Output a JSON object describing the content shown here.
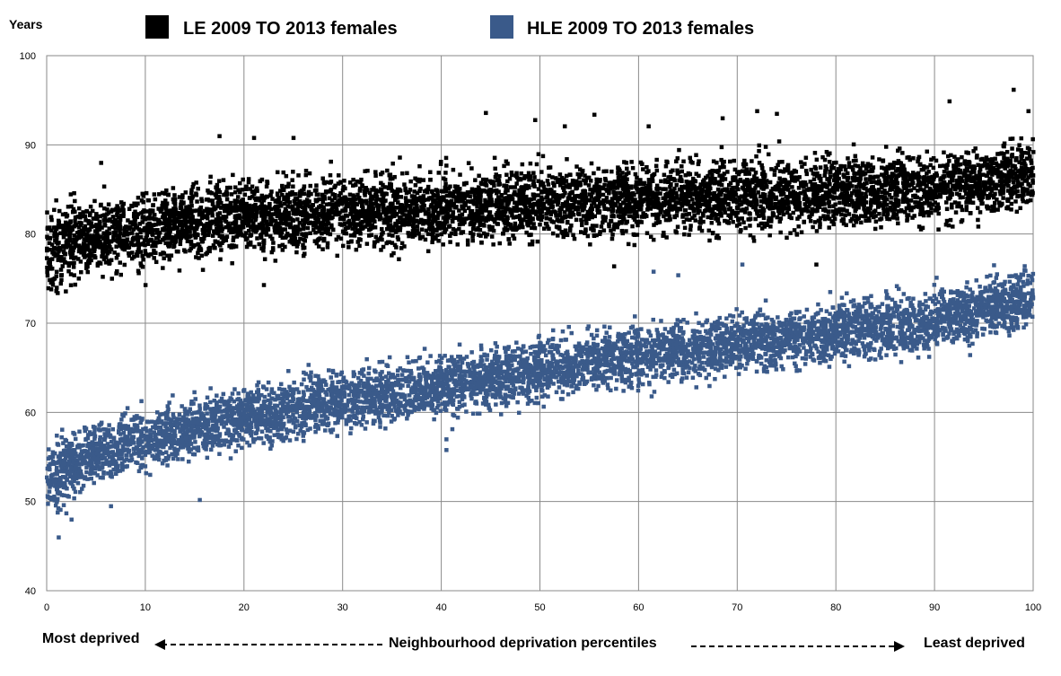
{
  "chart_data": {
    "type": "scatter",
    "ylabel": "Years",
    "xlabel": "Neighbourhood deprivation percentiles",
    "x_left_label": "Most deprived",
    "x_right_label": "Least deprived",
    "xlim": [
      0,
      100
    ],
    "ylim": [
      40,
      100
    ],
    "x_ticks": [
      0,
      10,
      20,
      30,
      40,
      50,
      60,
      70,
      80,
      90,
      100
    ],
    "y_ticks": [
      40,
      50,
      60,
      70,
      80,
      90,
      100
    ],
    "grid": true,
    "legend_position": "top",
    "series": [
      {
        "name": "LE 2009 TO 2013 females",
        "color": "#000000",
        "points_per_percentile": 60,
        "trend_y_at_x": [
          [
            0,
            78.5
          ],
          [
            10,
            80.5
          ],
          [
            20,
            82
          ],
          [
            30,
            82.5
          ],
          [
            40,
            83
          ],
          [
            50,
            83.5
          ],
          [
            60,
            84
          ],
          [
            70,
            84.3
          ],
          [
            80,
            84.7
          ],
          [
            90,
            85.3
          ],
          [
            100,
            86.5
          ]
        ],
        "spread_years": 2.8,
        "outlier_points": [
          [
            5.5,
            88
          ],
          [
            17.5,
            91
          ],
          [
            21,
            90.8
          ],
          [
            25,
            90.8
          ],
          [
            44.5,
            93.6
          ],
          [
            49.5,
            92.8
          ],
          [
            52.5,
            92.1
          ],
          [
            55.5,
            93.4
          ],
          [
            61,
            92.1
          ],
          [
            68.5,
            93
          ],
          [
            72,
            93.8
          ],
          [
            74,
            93.5
          ],
          [
            91.5,
            94.9
          ],
          [
            98,
            96.2
          ],
          [
            99.5,
            93.8
          ],
          [
            22,
            74.3
          ],
          [
            10,
            74.3
          ],
          [
            57.5,
            76.4
          ],
          [
            78,
            76.6
          ],
          [
            1,
            74
          ]
        ]
      },
      {
        "name": "HLE 2009 TO 2013 females",
        "color": "#3a5a8a",
        "points_per_percentile": 60,
        "trend_y_at_x": [
          [
            0,
            52.5
          ],
          [
            5,
            55.5
          ],
          [
            10,
            57
          ],
          [
            20,
            59.5
          ],
          [
            30,
            61.5
          ],
          [
            40,
            63
          ],
          [
            50,
            64.8
          ],
          [
            60,
            66.5
          ],
          [
            70,
            67.8
          ],
          [
            80,
            69
          ],
          [
            90,
            70.3
          ],
          [
            100,
            73
          ]
        ],
        "spread_years": 2.3,
        "outlier_points": [
          [
            1.2,
            46
          ],
          [
            15.5,
            50.2
          ],
          [
            40.5,
            57
          ],
          [
            40.5,
            55.8
          ],
          [
            61.5,
            75.8
          ],
          [
            70.5,
            76.6
          ],
          [
            64,
            75.4
          ],
          [
            6.5,
            49.5
          ],
          [
            2.5,
            48
          ]
        ]
      }
    ]
  }
}
